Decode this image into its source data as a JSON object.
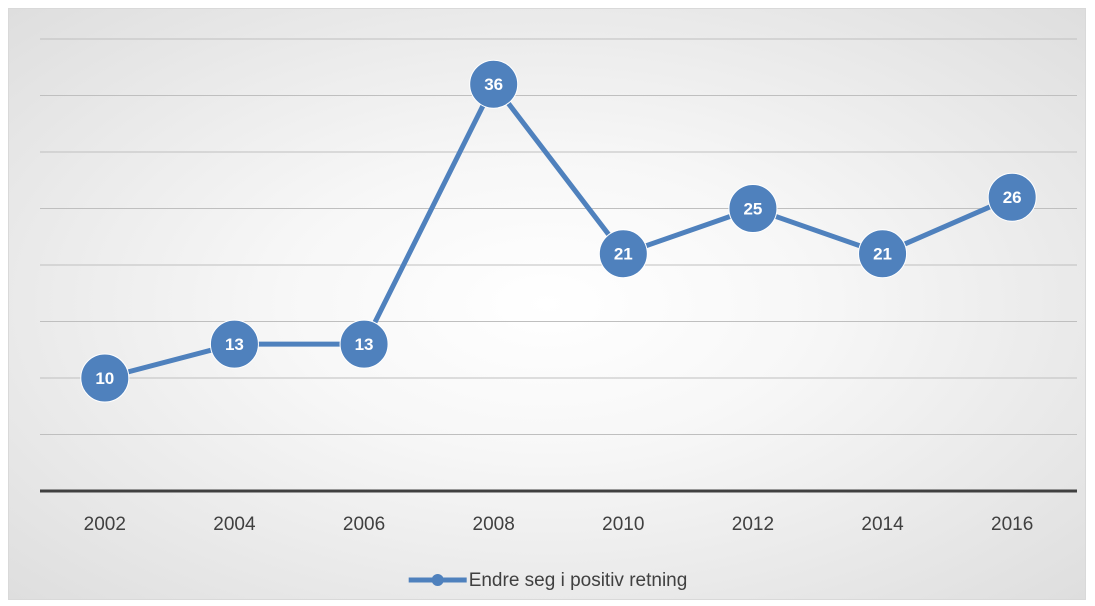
{
  "chart_data": {
    "type": "line",
    "title": "",
    "xlabel": "",
    "ylabel": "",
    "categories": [
      "2002",
      "2004",
      "2006",
      "2008",
      "2010",
      "2012",
      "2014",
      "2016"
    ],
    "series": [
      {
        "name": "Endre seg i positiv retning",
        "values": [
          10,
          13,
          13,
          36,
          21,
          25,
          21,
          26
        ],
        "color": "#4f81bd"
      }
    ],
    "ylim": [
      0,
      40
    ],
    "y_gridline_step": 5,
    "y_tick_labels_visible": false,
    "grid": true,
    "legend": "bottom-center",
    "data_labels": true
  }
}
